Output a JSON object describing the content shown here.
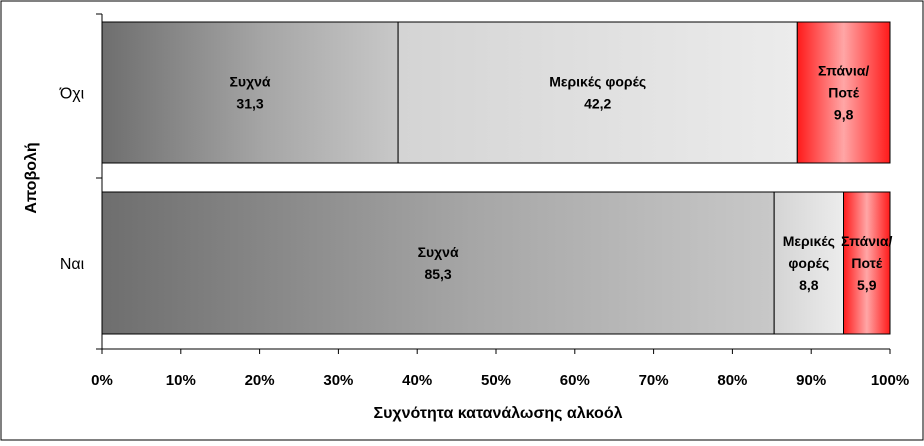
{
  "chart_data": {
    "type": "bar",
    "orientation": "horizontal",
    "stacked": "percent",
    "ylabel": "Αποβολή",
    "xlabel": "Συχνότητα κατανάλωσης αλκοόλ",
    "categories": [
      "Όχι",
      "Ναι"
    ],
    "series": [
      {
        "name": "Συχνά",
        "label_lines": [
          "Συχνά"
        ],
        "values": [
          31.3,
          85.3
        ],
        "color": "#8c8c8c"
      },
      {
        "name": "Μερικές φορές",
        "label_lines": [
          "Μερικές φορές",
          "Μερικές|φορές"
        ],
        "values": [
          42.2,
          8.8
        ],
        "color": "#d9d9d9"
      },
      {
        "name": "Σπάνια/ Ποτέ",
        "label_lines": [
          "Σπάνια/|Ποτέ",
          "Σπάνια/|Ποτέ"
        ],
        "values": [
          9.8,
          5.9
        ],
        "color": "#ff0000"
      }
    ],
    "value_labels": [
      [
        "31,3",
        "42,2",
        "9,8"
      ],
      [
        "85,3",
        "8,8",
        "5,9"
      ]
    ],
    "xticks": [
      "0%",
      "10%",
      "20%",
      "30%",
      "40%",
      "50%",
      "60%",
      "70%",
      "80%",
      "90%",
      "100%"
    ],
    "xlim": [
      0,
      100
    ],
    "grid": false,
    "legend": "none"
  }
}
